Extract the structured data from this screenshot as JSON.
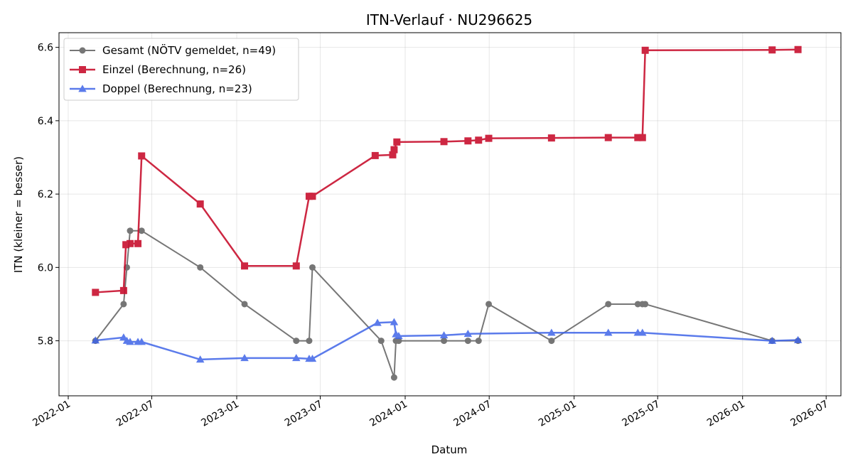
{
  "chart_data": {
    "type": "line",
    "title": "ITN-Verlauf · NU296625",
    "xlabel": "Datum",
    "ylabel": "ITN  (kleiner = besser)",
    "x_axis_type": "date",
    "xlim": [
      "2021-12-12",
      "2026-08-02"
    ],
    "ylim": [
      5.65,
      6.64
    ],
    "x_ticks": [
      "2022-01",
      "2022-07",
      "2023-01",
      "2023-07",
      "2024-01",
      "2024-07",
      "2025-01",
      "2025-07",
      "2026-01",
      "2026-07"
    ],
    "y_ticks": [
      5.8,
      6.0,
      6.2,
      6.4,
      6.6
    ],
    "grid": true,
    "legend_position": "top-left",
    "series": [
      {
        "name": "Gesamt (NÖTV gemeldet, n=49)",
        "color": "#555555",
        "marker": "circle",
        "points": [
          [
            "2022-03-01",
            5.8
          ],
          [
            "2022-05-01",
            5.9
          ],
          [
            "2022-05-08",
            6.0
          ],
          [
            "2022-05-15",
            6.1
          ],
          [
            "2022-06-09",
            6.1
          ],
          [
            "2022-10-14",
            6.0
          ],
          [
            "2023-01-18",
            5.9
          ],
          [
            "2023-05-10",
            5.8
          ],
          [
            "2023-06-07",
            5.8
          ],
          [
            "2023-06-14",
            6.0
          ],
          [
            "2023-11-10",
            5.8
          ],
          [
            "2023-12-08",
            5.7
          ],
          [
            "2023-12-12",
            5.8
          ],
          [
            "2023-12-18",
            5.8
          ],
          [
            "2024-03-25",
            5.8
          ],
          [
            "2024-05-16",
            5.8
          ],
          [
            "2024-06-08",
            5.8
          ],
          [
            "2024-06-30",
            5.9
          ],
          [
            "2024-11-13",
            5.8
          ],
          [
            "2025-03-16",
            5.9
          ],
          [
            "2025-05-19",
            5.9
          ],
          [
            "2025-05-29",
            5.9
          ],
          [
            "2025-06-04",
            5.9
          ],
          [
            "2026-03-06",
            5.8
          ],
          [
            "2026-05-01",
            5.8
          ]
        ]
      },
      {
        "name": "Einzel (Berechnung, n=26)",
        "color": "#c8102e",
        "marker": "square",
        "points": [
          [
            "2022-03-01",
            5.932
          ],
          [
            "2022-05-01",
            5.937
          ],
          [
            "2022-05-06",
            6.062
          ],
          [
            "2022-05-15",
            6.065
          ],
          [
            "2022-06-01",
            6.065
          ],
          [
            "2022-06-09",
            6.304
          ],
          [
            "2022-10-14",
            6.173
          ],
          [
            "2023-01-18",
            6.004
          ],
          [
            "2023-05-10",
            6.004
          ],
          [
            "2023-06-07",
            6.194
          ],
          [
            "2023-06-14",
            6.194
          ],
          [
            "2023-10-28",
            6.305
          ],
          [
            "2023-12-05",
            6.307
          ],
          [
            "2023-12-08",
            6.321
          ],
          [
            "2023-12-14",
            6.342
          ],
          [
            "2024-03-25",
            6.343
          ],
          [
            "2024-05-16",
            6.345
          ],
          [
            "2024-06-08",
            6.347
          ],
          [
            "2024-06-30",
            6.352
          ],
          [
            "2024-11-13",
            6.353
          ],
          [
            "2025-03-16",
            6.354
          ],
          [
            "2025-05-19",
            6.354
          ],
          [
            "2025-05-29",
            6.354
          ],
          [
            "2025-06-04",
            6.592
          ],
          [
            "2026-03-06",
            6.593
          ],
          [
            "2026-05-01",
            6.594
          ]
        ]
      },
      {
        "name": "Doppel (Berechnung, n=23)",
        "color": "#3f65e8",
        "marker": "triangle",
        "points": [
          [
            "2022-03-01",
            5.801
          ],
          [
            "2022-05-01",
            5.809
          ],
          [
            "2022-05-08",
            5.8
          ],
          [
            "2022-05-15",
            5.797
          ],
          [
            "2022-06-01",
            5.797
          ],
          [
            "2022-06-09",
            5.797
          ],
          [
            "2022-10-14",
            5.749
          ],
          [
            "2023-01-18",
            5.753
          ],
          [
            "2023-05-10",
            5.753
          ],
          [
            "2023-06-07",
            5.751
          ],
          [
            "2023-06-14",
            5.751
          ],
          [
            "2023-11-02",
            5.849
          ],
          [
            "2023-12-08",
            5.851
          ],
          [
            "2023-12-12",
            5.818
          ],
          [
            "2023-12-18",
            5.813
          ],
          [
            "2024-03-25",
            5.815
          ],
          [
            "2024-05-16",
            5.819
          ],
          [
            "2024-11-13",
            5.822
          ],
          [
            "2025-03-16",
            5.822
          ],
          [
            "2025-05-19",
            5.822
          ],
          [
            "2025-05-29",
            5.822
          ],
          [
            "2026-03-06",
            5.8
          ],
          [
            "2026-05-01",
            5.802
          ]
        ]
      }
    ]
  }
}
